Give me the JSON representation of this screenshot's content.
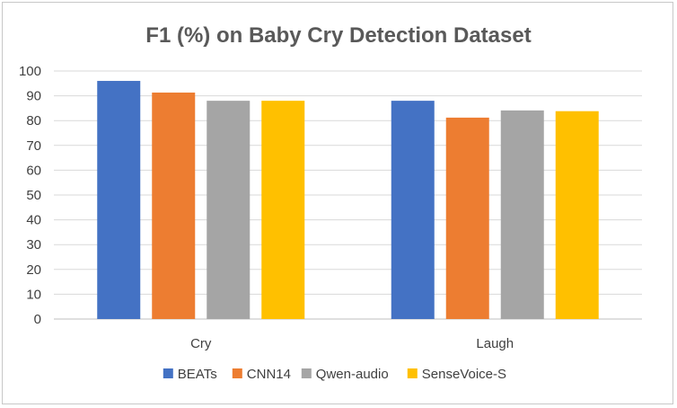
{
  "chart_data": {
    "type": "bar",
    "title": "F1 (%) on Baby Cry Detection Dataset",
    "categories": [
      "Cry",
      "Laugh"
    ],
    "series": [
      {
        "name": "BEATs",
        "values": [
          96,
          88
        ],
        "color": "#4472c4"
      },
      {
        "name": "CNN14",
        "values": [
          91.3,
          81.2
        ],
        "color": "#ed7d31"
      },
      {
        "name": "Qwen-audio",
        "values": [
          88,
          84.1
        ],
        "color": "#a5a5a5"
      },
      {
        "name": "SenseVoice-S",
        "values": [
          88,
          83.8
        ],
        "color": "#ffc000"
      }
    ],
    "ylim": [
      0,
      100
    ],
    "yticks": [
      0,
      10,
      20,
      30,
      40,
      50,
      60,
      70,
      80,
      90,
      100
    ],
    "grid": true,
    "legend": "bottom"
  }
}
